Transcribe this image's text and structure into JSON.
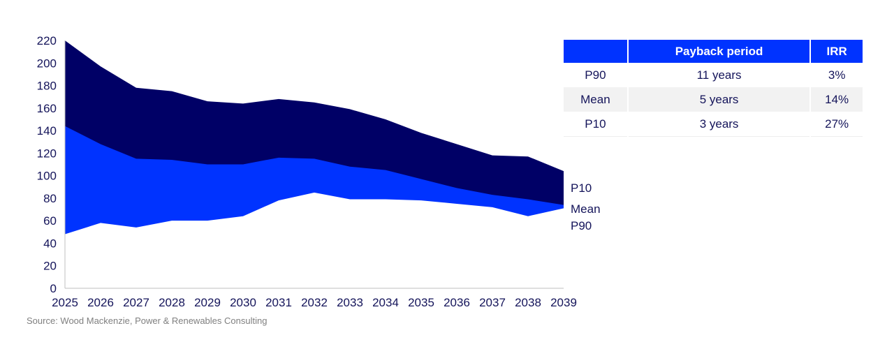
{
  "chart_data": {
    "type": "area",
    "title": "",
    "xlabel": "",
    "ylabel": "",
    "x": [
      2025,
      2026,
      2027,
      2028,
      2029,
      2030,
      2031,
      2032,
      2033,
      2034,
      2035,
      2036,
      2037,
      2038,
      2039
    ],
    "ylim": [
      0,
      220
    ],
    "yticks": [
      0,
      20,
      40,
      60,
      80,
      100,
      120,
      140,
      160,
      180,
      200,
      220
    ],
    "grid": false,
    "series": [
      {
        "name": "P10",
        "values": [
          220,
          197,
          178,
          175,
          166,
          164,
          168,
          165,
          159,
          150,
          138,
          128,
          118,
          117,
          104
        ],
        "color": "#000066"
      },
      {
        "name": "Mean",
        "values": [
          144,
          128,
          115,
          114,
          110,
          110,
          116,
          115,
          108,
          105,
          97,
          89,
          83,
          79,
          74
        ],
        "color": "#0033ff"
      },
      {
        "name": "P90",
        "values": [
          48,
          58,
          54,
          60,
          60,
          64,
          78,
          85,
          79,
          79,
          78,
          75,
          72,
          64,
          71
        ],
        "color": "#ffffff"
      }
    ],
    "legend_placement": "right-end labels"
  },
  "table": {
    "headers": [
      "",
      "Payback period",
      "IRR"
    ],
    "rows": [
      [
        "P90",
        "11 years",
        "3%"
      ],
      [
        "Mean",
        "5 years",
        "14%"
      ],
      [
        "P10",
        "3 years",
        "27%"
      ]
    ]
  },
  "source": "Source: Wood Mackenzie, Power & Renewables Consulting"
}
